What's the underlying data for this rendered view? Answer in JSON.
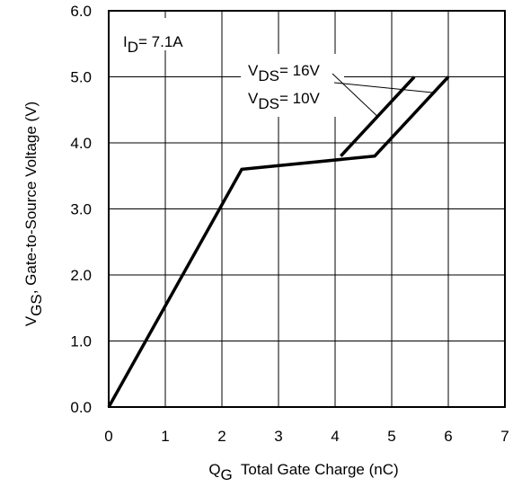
{
  "chart_data": {
    "type": "line",
    "title": "",
    "xlabel": {
      "main": "Q",
      "sub": "G",
      "rest": "  Total Gate Charge (nC)"
    },
    "ylabel": {
      "main": "V",
      "sub": "GS",
      "rest": ", Gate-to-Source Voltage (V)"
    },
    "xlim": [
      0,
      7
    ],
    "ylim": [
      0,
      6
    ],
    "x_ticks": [
      "0",
      "1",
      "2",
      "3",
      "4",
      "5",
      "6",
      "7"
    ],
    "y_ticks": [
      "0.0",
      "1.0",
      "2.0",
      "3.0",
      "4.0",
      "5.0",
      "6.0"
    ],
    "grid": true,
    "series": [
      {
        "name": "VDS= 10V",
        "x": [
          0,
          2.35,
          4.7,
          6.0
        ],
        "y": [
          0,
          3.6,
          3.8,
          5.0
        ]
      },
      {
        "name": "VDS= 16V",
        "x": [
          4.1,
          5.4
        ],
        "y": [
          3.8,
          5.0
        ]
      }
    ],
    "annotations": {
      "condition": {
        "main": "I",
        "sub": "D",
        "rest": "= 7.1A"
      },
      "series_labels": [
        {
          "main": "V",
          "sub": "DS",
          "rest": "= 16V"
        },
        {
          "main": "V",
          "sub": "DS",
          "rest": "= 10V"
        }
      ]
    }
  }
}
